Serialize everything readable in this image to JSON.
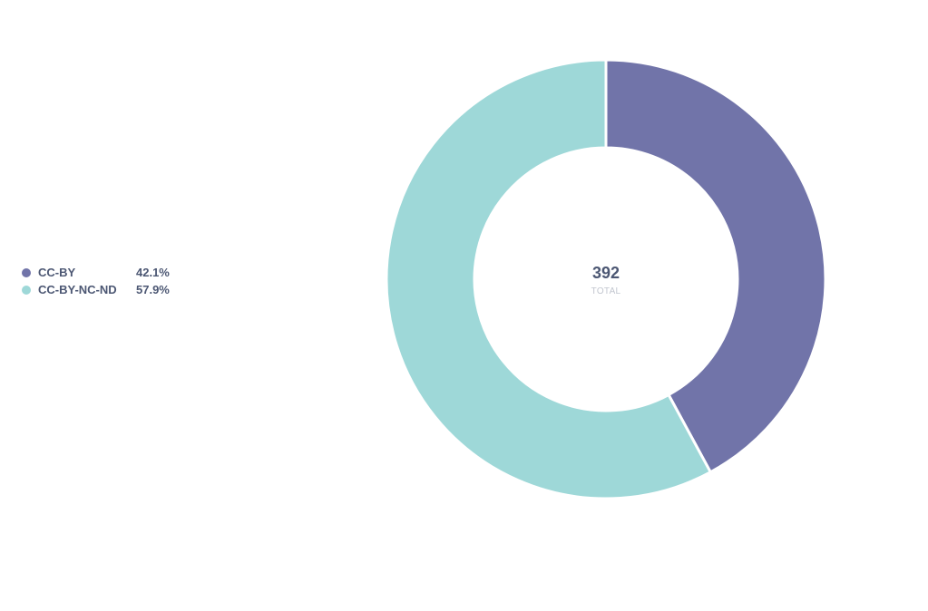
{
  "chart_data": {
    "type": "pie",
    "variant": "donut",
    "categories": [
      "CC-BY",
      "CC-BY-NC-ND"
    ],
    "percentages": [
      "42.1%",
      "57.9%"
    ],
    "values": [
      0.421,
      0.579
    ],
    "colors": [
      "#7174a9",
      "#9ed8d8"
    ],
    "total": "392",
    "total_label": "TOTAL",
    "legend_position": "left"
  },
  "legend": {
    "items": [
      {
        "label": "CC-BY",
        "percent": "42.1%",
        "color": "#7174a9"
      },
      {
        "label": "CC-BY-NC-ND",
        "percent": "57.9%",
        "color": "#9ed8d8"
      }
    ]
  }
}
